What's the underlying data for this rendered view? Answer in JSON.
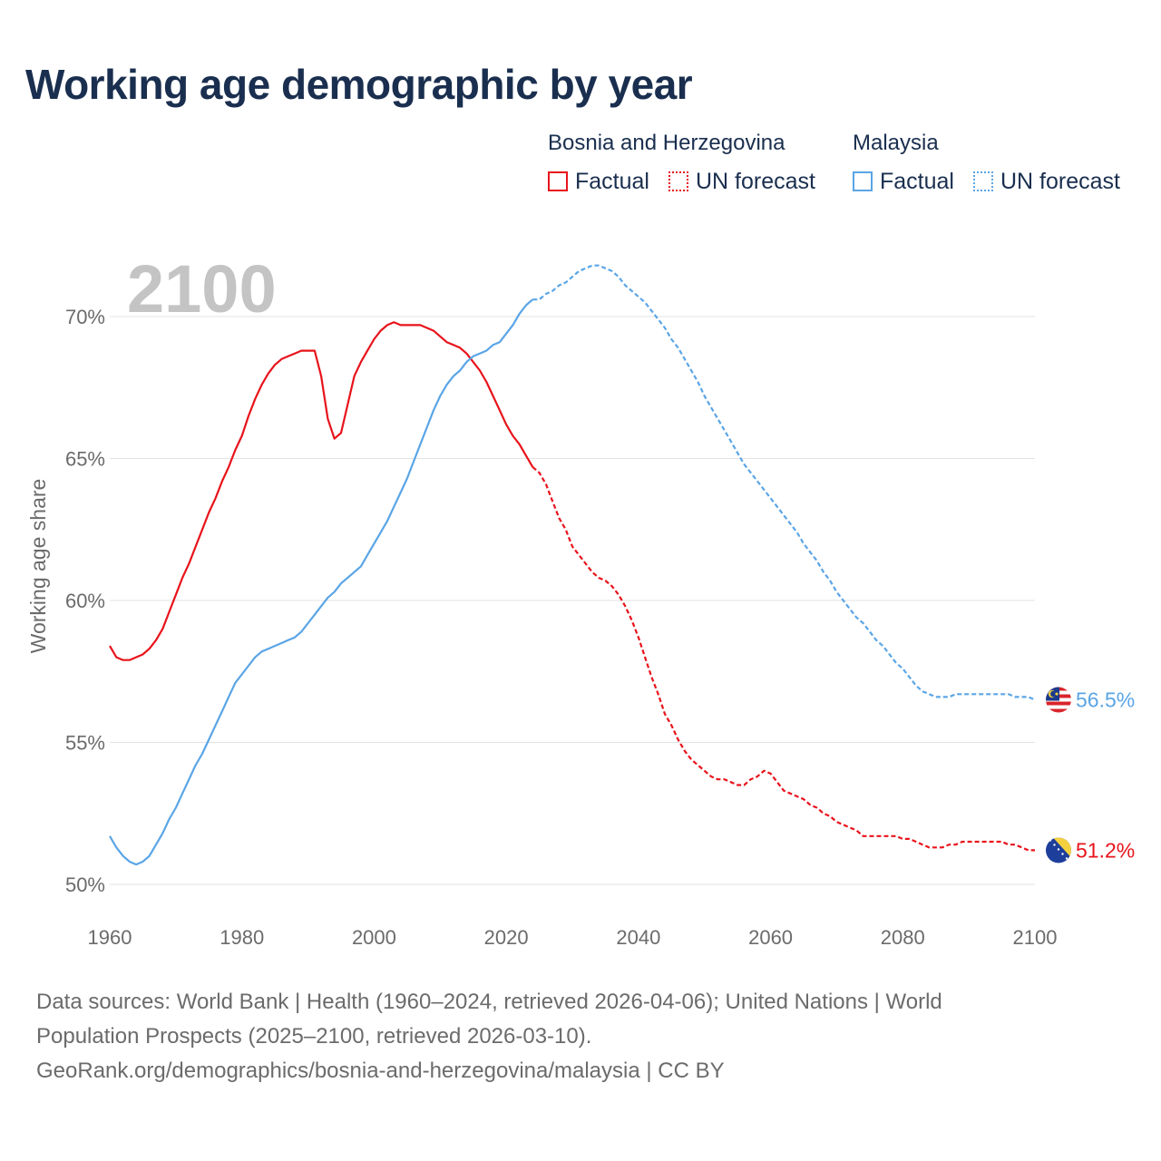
{
  "title": "Working age demographic by year",
  "legend": {
    "groups": [
      {
        "name": "Bosnia and Herzegovina",
        "factual": "Factual",
        "forecast": "UN forecast",
        "color": "#e8131b"
      },
      {
        "name": "Malaysia",
        "factual": "Factual",
        "forecast": "UN forecast",
        "color": "#5aa5e6"
      }
    ]
  },
  "footer": {
    "line1": "Data sources: World Bank | Health (1960–2024, retrieved 2026-04-06); United Nations | World",
    "line2": "Population Prospects (2025–2100, retrieved 2026-03-10).",
    "line3": "GeoRank.org/demographics/bosnia-and-herzegovina/malaysia | CC BY"
  },
  "chart_data": {
    "type": "line",
    "title": "Working age demographic by year",
    "year_label": "2100",
    "xlabel": "",
    "ylabel": "Working age share",
    "xlim": [
      1960,
      2100
    ],
    "ylim": [
      50,
      72
    ],
    "x_ticks": [
      1960,
      1980,
      2000,
      2020,
      2040,
      2060,
      2080,
      2100
    ],
    "y_ticks": [
      50,
      55,
      60,
      65,
      70
    ],
    "y_tick_labels": [
      "50%",
      "55%",
      "60%",
      "65%",
      "70%"
    ],
    "forecast_start": 2024,
    "series": [
      {
        "name": "Bosnia and Herzegovina",
        "color": "#e8131b",
        "end_label": "51.2%",
        "points": [
          [
            1960,
            58.4
          ],
          [
            1961,
            58.0
          ],
          [
            1962,
            57.9
          ],
          [
            1963,
            57.9
          ],
          [
            1964,
            58.0
          ],
          [
            1965,
            58.1
          ],
          [
            1966,
            58.3
          ],
          [
            1967,
            58.6
          ],
          [
            1968,
            59.0
          ],
          [
            1969,
            59.6
          ],
          [
            1970,
            60.2
          ],
          [
            1971,
            60.8
          ],
          [
            1972,
            61.3
          ],
          [
            1973,
            61.9
          ],
          [
            1974,
            62.5
          ],
          [
            1975,
            63.1
          ],
          [
            1976,
            63.6
          ],
          [
            1977,
            64.2
          ],
          [
            1978,
            64.7
          ],
          [
            1979,
            65.3
          ],
          [
            1980,
            65.8
          ],
          [
            1981,
            66.5
          ],
          [
            1982,
            67.1
          ],
          [
            1983,
            67.6
          ],
          [
            1984,
            68.0
          ],
          [
            1985,
            68.3
          ],
          [
            1986,
            68.5
          ],
          [
            1987,
            68.6
          ],
          [
            1988,
            68.7
          ],
          [
            1989,
            68.8
          ],
          [
            1990,
            68.8
          ],
          [
            1991,
            68.8
          ],
          [
            1992,
            67.9
          ],
          [
            1993,
            66.4
          ],
          [
            1994,
            65.7
          ],
          [
            1995,
            65.9
          ],
          [
            1996,
            66.9
          ],
          [
            1997,
            67.9
          ],
          [
            1998,
            68.4
          ],
          [
            1999,
            68.8
          ],
          [
            2000,
            69.2
          ],
          [
            2001,
            69.5
          ],
          [
            2002,
            69.7
          ],
          [
            2003,
            69.8
          ],
          [
            2004,
            69.7
          ],
          [
            2005,
            69.7
          ],
          [
            2006,
            69.7
          ],
          [
            2007,
            69.7
          ],
          [
            2008,
            69.6
          ],
          [
            2009,
            69.5
          ],
          [
            2010,
            69.3
          ],
          [
            2011,
            69.1
          ],
          [
            2012,
            69.0
          ],
          [
            2013,
            68.9
          ],
          [
            2014,
            68.7
          ],
          [
            2015,
            68.4
          ],
          [
            2016,
            68.1
          ],
          [
            2017,
            67.7
          ],
          [
            2018,
            67.2
          ],
          [
            2019,
            66.7
          ],
          [
            2020,
            66.2
          ],
          [
            2021,
            65.8
          ],
          [
            2022,
            65.5
          ],
          [
            2023,
            65.1
          ],
          [
            2024,
            64.7
          ],
          [
            2025,
            64.5
          ],
          [
            2026,
            64.1
          ],
          [
            2027,
            63.5
          ],
          [
            2028,
            62.9
          ],
          [
            2029,
            62.5
          ],
          [
            2030,
            61.9
          ],
          [
            2031,
            61.6
          ],
          [
            2032,
            61.3
          ],
          [
            2033,
            61.0
          ],
          [
            2034,
            60.8
          ],
          [
            2035,
            60.7
          ],
          [
            2036,
            60.5
          ],
          [
            2037,
            60.2
          ],
          [
            2038,
            59.8
          ],
          [
            2039,
            59.3
          ],
          [
            2040,
            58.7
          ],
          [
            2041,
            58.0
          ],
          [
            2042,
            57.3
          ],
          [
            2043,
            56.7
          ],
          [
            2044,
            56.0
          ],
          [
            2045,
            55.6
          ],
          [
            2046,
            55.1
          ],
          [
            2047,
            54.7
          ],
          [
            2048,
            54.4
          ],
          [
            2049,
            54.2
          ],
          [
            2050,
            54.0
          ],
          [
            2051,
            53.8
          ],
          [
            2052,
            53.7
          ],
          [
            2053,
            53.7
          ],
          [
            2054,
            53.6
          ],
          [
            2055,
            53.5
          ],
          [
            2056,
            53.5
          ],
          [
            2057,
            53.7
          ],
          [
            2058,
            53.8
          ],
          [
            2059,
            54.0
          ],
          [
            2060,
            53.9
          ],
          [
            2061,
            53.6
          ],
          [
            2062,
            53.3
          ],
          [
            2063,
            53.2
          ],
          [
            2064,
            53.1
          ],
          [
            2065,
            53.0
          ],
          [
            2066,
            52.8
          ],
          [
            2067,
            52.7
          ],
          [
            2068,
            52.5
          ],
          [
            2069,
            52.4
          ],
          [
            2070,
            52.2
          ],
          [
            2071,
            52.1
          ],
          [
            2072,
            52.0
          ],
          [
            2073,
            51.9
          ],
          [
            2074,
            51.7
          ],
          [
            2075,
            51.7
          ],
          [
            2076,
            51.7
          ],
          [
            2077,
            51.7
          ],
          [
            2078,
            51.7
          ],
          [
            2079,
            51.7
          ],
          [
            2080,
            51.6
          ],
          [
            2081,
            51.6
          ],
          [
            2082,
            51.5
          ],
          [
            2083,
            51.4
          ],
          [
            2084,
            51.3
          ],
          [
            2085,
            51.3
          ],
          [
            2086,
            51.3
          ],
          [
            2087,
            51.4
          ],
          [
            2088,
            51.4
          ],
          [
            2089,
            51.5
          ],
          [
            2090,
            51.5
          ],
          [
            2091,
            51.5
          ],
          [
            2092,
            51.5
          ],
          [
            2093,
            51.5
          ],
          [
            2094,
            51.5
          ],
          [
            2095,
            51.5
          ],
          [
            2096,
            51.4
          ],
          [
            2097,
            51.4
          ],
          [
            2098,
            51.3
          ],
          [
            2099,
            51.2
          ],
          [
            2100,
            51.2
          ]
        ]
      },
      {
        "name": "Malaysia",
        "color": "#5aa5e6",
        "end_label": "56.5%",
        "points": [
          [
            1960,
            51.7
          ],
          [
            1961,
            51.3
          ],
          [
            1962,
            51.0
          ],
          [
            1963,
            50.8
          ],
          [
            1964,
            50.7
          ],
          [
            1965,
            50.8
          ],
          [
            1966,
            51.0
          ],
          [
            1967,
            51.4
          ],
          [
            1968,
            51.8
          ],
          [
            1969,
            52.3
          ],
          [
            1970,
            52.7
          ],
          [
            1971,
            53.2
          ],
          [
            1972,
            53.7
          ],
          [
            1973,
            54.2
          ],
          [
            1974,
            54.6
          ],
          [
            1975,
            55.1
          ],
          [
            1976,
            55.6
          ],
          [
            1977,
            56.1
          ],
          [
            1978,
            56.6
          ],
          [
            1979,
            57.1
          ],
          [
            1980,
            57.4
          ],
          [
            1981,
            57.7
          ],
          [
            1982,
            58.0
          ],
          [
            1983,
            58.2
          ],
          [
            1984,
            58.3
          ],
          [
            1985,
            58.4
          ],
          [
            1986,
            58.5
          ],
          [
            1987,
            58.6
          ],
          [
            1988,
            58.7
          ],
          [
            1989,
            58.9
          ],
          [
            1990,
            59.2
          ],
          [
            1991,
            59.5
          ],
          [
            1992,
            59.8
          ],
          [
            1993,
            60.1
          ],
          [
            1994,
            60.3
          ],
          [
            1995,
            60.6
          ],
          [
            1996,
            60.8
          ],
          [
            1997,
            61.0
          ],
          [
            1998,
            61.2
          ],
          [
            1999,
            61.6
          ],
          [
            2000,
            62.0
          ],
          [
            2001,
            62.4
          ],
          [
            2002,
            62.8
          ],
          [
            2003,
            63.3
          ],
          [
            2004,
            63.8
          ],
          [
            2005,
            64.3
          ],
          [
            2006,
            64.9
          ],
          [
            2007,
            65.5
          ],
          [
            2008,
            66.1
          ],
          [
            2009,
            66.7
          ],
          [
            2010,
            67.2
          ],
          [
            2011,
            67.6
          ],
          [
            2012,
            67.9
          ],
          [
            2013,
            68.1
          ],
          [
            2014,
            68.4
          ],
          [
            2015,
            68.6
          ],
          [
            2016,
            68.7
          ],
          [
            2017,
            68.8
          ],
          [
            2018,
            69.0
          ],
          [
            2019,
            69.1
          ],
          [
            2020,
            69.4
          ],
          [
            2021,
            69.7
          ],
          [
            2022,
            70.1
          ],
          [
            2023,
            70.4
          ],
          [
            2024,
            70.6
          ],
          [
            2025,
            70.6
          ],
          [
            2026,
            70.8
          ],
          [
            2027,
            70.9
          ],
          [
            2028,
            71.1
          ],
          [
            2029,
            71.2
          ],
          [
            2030,
            71.4
          ],
          [
            2031,
            71.6
          ],
          [
            2032,
            71.7
          ],
          [
            2033,
            71.8
          ],
          [
            2034,
            71.8
          ],
          [
            2035,
            71.7
          ],
          [
            2036,
            71.6
          ],
          [
            2037,
            71.4
          ],
          [
            2038,
            71.1
          ],
          [
            2039,
            70.9
          ],
          [
            2040,
            70.7
          ],
          [
            2041,
            70.5
          ],
          [
            2042,
            70.2
          ],
          [
            2043,
            69.9
          ],
          [
            2044,
            69.6
          ],
          [
            2045,
            69.2
          ],
          [
            2046,
            68.9
          ],
          [
            2047,
            68.5
          ],
          [
            2048,
            68.1
          ],
          [
            2049,
            67.7
          ],
          [
            2050,
            67.2
          ],
          [
            2051,
            66.8
          ],
          [
            2052,
            66.4
          ],
          [
            2053,
            66.0
          ],
          [
            2054,
            65.6
          ],
          [
            2055,
            65.2
          ],
          [
            2056,
            64.8
          ],
          [
            2057,
            64.5
          ],
          [
            2058,
            64.2
          ],
          [
            2059,
            63.9
          ],
          [
            2060,
            63.6
          ],
          [
            2061,
            63.3
          ],
          [
            2062,
            63.0
          ],
          [
            2063,
            62.7
          ],
          [
            2064,
            62.4
          ],
          [
            2065,
            62.0
          ],
          [
            2066,
            61.7
          ],
          [
            2067,
            61.4
          ],
          [
            2068,
            61.0
          ],
          [
            2069,
            60.7
          ],
          [
            2070,
            60.3
          ],
          [
            2071,
            60.0
          ],
          [
            2072,
            59.7
          ],
          [
            2073,
            59.4
          ],
          [
            2074,
            59.2
          ],
          [
            2075,
            58.9
          ],
          [
            2076,
            58.6
          ],
          [
            2077,
            58.4
          ],
          [
            2078,
            58.1
          ],
          [
            2079,
            57.8
          ],
          [
            2080,
            57.6
          ],
          [
            2081,
            57.3
          ],
          [
            2082,
            57.0
          ],
          [
            2083,
            56.8
          ],
          [
            2084,
            56.7
          ],
          [
            2085,
            56.6
          ],
          [
            2086,
            56.6
          ],
          [
            2087,
            56.6
          ],
          [
            2088,
            56.7
          ],
          [
            2089,
            56.7
          ],
          [
            2090,
            56.7
          ],
          [
            2091,
            56.7
          ],
          [
            2092,
            56.7
          ],
          [
            2093,
            56.7
          ],
          [
            2094,
            56.7
          ],
          [
            2095,
            56.7
          ],
          [
            2096,
            56.7
          ],
          [
            2097,
            56.6
          ],
          [
            2098,
            56.6
          ],
          [
            2099,
            56.6
          ],
          [
            2100,
            56.5
          ]
        ]
      }
    ]
  }
}
